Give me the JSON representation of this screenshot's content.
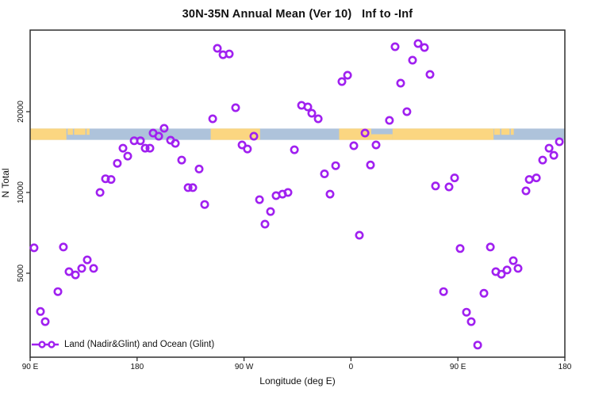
{
  "figure": {
    "title": "30N-35N Annual Mean (Ver 10)   Inf to -Inf"
  },
  "legend": {
    "label": "Land (Nadir&Glint) and Ocean (Glint)"
  },
  "colors": {
    "point": "#A020F0",
    "ocean": "#AEC3DB",
    "land": "#FBD681",
    "axis": "#2F2F2F",
    "text": "#111111"
  },
  "chart_data": {
    "type": "scatter",
    "title": "30N-35N Annual Mean (Ver 10)   Inf to -Inf",
    "xlabel": "Longitude (deg E)",
    "ylabel": "N Total",
    "x_range": [
      90,
      540
    ],
    "x_ticks": [
      {
        "value": 90,
        "label": "90 E"
      },
      {
        "value": 180,
        "label": "180"
      },
      {
        "value": 270,
        "label": "90 W"
      },
      {
        "value": 360,
        "label": "0"
      },
      {
        "value": 450,
        "label": "90 E"
      },
      {
        "value": 540,
        "label": "180"
      }
    ],
    "y_scale": "log",
    "y_range": [
      2400,
      40500
    ],
    "y_ticks": [
      {
        "value": 5000,
        "label": "5000"
      },
      {
        "value": 10000,
        "label": "10000"
      },
      {
        "value": 20000,
        "label": "20000"
      }
    ],
    "grid": false,
    "legend_position": "bottom-left-inside",
    "map_band": {
      "description": "world coastline strip for 30N-35N drawn across plot",
      "top_value": 17300,
      "bottom_value": 15700,
      "ocean_span": [
        90,
        540
      ],
      "land_patches": [
        {
          "from": 90,
          "to": 120.5,
          "part": "full"
        },
        {
          "from": 121.5,
          "to": 126,
          "part": "upper"
        },
        {
          "from": 127,
          "to": 136.5,
          "part": "upper"
        },
        {
          "from": 137.5,
          "to": 140,
          "part": "upper"
        },
        {
          "from": 242,
          "to": 283.5,
          "part": "full"
        },
        {
          "from": 350,
          "to": 377,
          "part": "full"
        },
        {
          "from": 377,
          "to": 395,
          "part": "lower"
        },
        {
          "from": 395,
          "to": 480,
          "part": "full"
        },
        {
          "from": 480.5,
          "to": 485.5,
          "part": "upper"
        },
        {
          "from": 486.5,
          "to": 493.5,
          "part": "upper"
        },
        {
          "from": 494.5,
          "to": 497,
          "part": "upper"
        }
      ]
    },
    "series": [
      {
        "name": "Land (Nadir&Glint) and Ocean (Glint)",
        "marker": "open-circle",
        "points": [
          [
            93.3,
            6220
          ],
          [
            98.7,
            3600
          ],
          [
            102.7,
            3300
          ],
          [
            113.4,
            4270
          ],
          [
            118.0,
            6260
          ],
          [
            122.7,
            5070
          ],
          [
            128.1,
            4930
          ],
          [
            133.4,
            5210
          ],
          [
            138.1,
            5610
          ],
          [
            143.4,
            5210
          ],
          [
            148.8,
            10000
          ],
          [
            153.4,
            11250
          ],
          [
            158.1,
            11180
          ],
          [
            163.4,
            12840
          ],
          [
            168.1,
            14620
          ],
          [
            172.1,
            13660
          ],
          [
            177.5,
            15590
          ],
          [
            182.8,
            15590
          ],
          [
            186.8,
            14620
          ],
          [
            190.8,
            14620
          ],
          [
            193.5,
            16650
          ],
          [
            198.2,
            16200
          ],
          [
            202.8,
            17340
          ],
          [
            208.2,
            15660
          ],
          [
            212.2,
            15240
          ],
          [
            217.5,
            13200
          ],
          [
            222.9,
            10420
          ],
          [
            226.9,
            10420
          ],
          [
            232.2,
            12230
          ],
          [
            236.9,
            9020
          ],
          [
            243.6,
            18810
          ],
          [
            247.6,
            34450
          ],
          [
            252.3,
            32600
          ],
          [
            257.6,
            32830
          ],
          [
            262.9,
            20690
          ],
          [
            268.3,
            15030
          ],
          [
            272.9,
            14520
          ],
          [
            278.3,
            16200
          ],
          [
            283.0,
            9400
          ],
          [
            287.6,
            7620
          ],
          [
            292.3,
            8490
          ],
          [
            297.0,
            9730
          ],
          [
            302.4,
            9860
          ],
          [
            307.0,
            10000
          ],
          [
            312.4,
            14420
          ],
          [
            318.4,
            21120
          ],
          [
            323.7,
            20830
          ],
          [
            327.0,
            19730
          ],
          [
            332.4,
            18810
          ],
          [
            337.7,
            11730
          ],
          [
            342.4,
            9860
          ],
          [
            347.1,
            12580
          ],
          [
            352.4,
            25890
          ],
          [
            357.1,
            27340
          ],
          [
            362.4,
            14930
          ],
          [
            367.1,
            6930
          ],
          [
            371.8,
            16650
          ],
          [
            376.4,
            12660
          ],
          [
            381.1,
            15030
          ],
          [
            392.4,
            18560
          ],
          [
            397.1,
            34920
          ],
          [
            401.8,
            25550
          ],
          [
            407.1,
            20000
          ],
          [
            411.8,
            31110
          ],
          [
            416.5,
            35870
          ],
          [
            421.8,
            34680
          ],
          [
            426.5,
            27530
          ],
          [
            431.2,
            10570
          ],
          [
            437.9,
            4270
          ],
          [
            442.5,
            10490
          ],
          [
            447.2,
            11330
          ],
          [
            451.9,
            6180
          ],
          [
            457.2,
            3580
          ],
          [
            461.2,
            3300
          ],
          [
            466.6,
            2700
          ],
          [
            471.9,
            4210
          ],
          [
            477.3,
            6260
          ],
          [
            481.9,
            5070
          ],
          [
            486.6,
            4960
          ],
          [
            491.3,
            5140
          ],
          [
            496.6,
            5570
          ],
          [
            500.6,
            5210
          ],
          [
            507.3,
            10140
          ],
          [
            510.0,
            11180
          ],
          [
            516.0,
            11330
          ],
          [
            521.3,
            13200
          ],
          [
            526.7,
            14620
          ],
          [
            530.7,
            13750
          ],
          [
            535.4,
            15450
          ]
        ]
      }
    ]
  }
}
